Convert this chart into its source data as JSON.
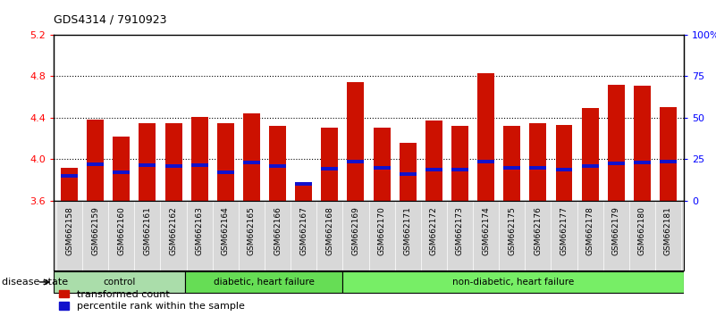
{
  "title": "GDS4314 / 7910923",
  "samples": [
    "GSM662158",
    "GSM662159",
    "GSM662160",
    "GSM662161",
    "GSM662162",
    "GSM662163",
    "GSM662164",
    "GSM662165",
    "GSM662166",
    "GSM662167",
    "GSM662168",
    "GSM662169",
    "GSM662170",
    "GSM662171",
    "GSM662172",
    "GSM662173",
    "GSM662174",
    "GSM662175",
    "GSM662176",
    "GSM662177",
    "GSM662178",
    "GSM662179",
    "GSM662180",
    "GSM662181"
  ],
  "red_values": [
    3.92,
    4.38,
    4.22,
    4.35,
    4.35,
    4.41,
    4.35,
    4.44,
    4.32,
    3.76,
    4.3,
    4.74,
    4.3,
    4.16,
    4.37,
    4.32,
    4.83,
    4.32,
    4.35,
    4.33,
    4.49,
    4.72,
    4.71,
    4.5
  ],
  "blue_values": [
    3.84,
    3.95,
    3.87,
    3.94,
    3.93,
    3.94,
    3.87,
    3.97,
    3.93,
    3.76,
    3.91,
    3.98,
    3.92,
    3.86,
    3.9,
    3.9,
    3.98,
    3.92,
    3.92,
    3.9,
    3.93,
    3.96,
    3.97,
    3.98
  ],
  "ylim_left": [
    3.6,
    5.2
  ],
  "ylim_right": [
    0,
    100
  ],
  "yticks_left": [
    3.6,
    4.0,
    4.4,
    4.8,
    5.2
  ],
  "yticks_right": [
    0,
    25,
    50,
    75,
    100
  ],
  "ytick_right_labels": [
    "0",
    "25",
    "50",
    "75",
    "100%"
  ],
  "grid_values": [
    4.0,
    4.4,
    4.8
  ],
  "bar_color": "#cc1100",
  "blue_color": "#1111cc",
  "plot_bg": "#ffffff",
  "tick_bg": "#d8d8d8",
  "group_labels": [
    "control",
    "diabetic, heart failure",
    "non-diabetic, heart failure"
  ],
  "group_colors": [
    "#aaddaa",
    "#66dd55",
    "#77ee66"
  ],
  "group_ranges": [
    [
      0,
      5
    ],
    [
      5,
      11
    ],
    [
      11,
      24
    ]
  ],
  "disease_state_label": "disease state",
  "legend_red": "transformed count",
  "legend_blue": "percentile rank within the sample",
  "n_control": 5,
  "n_diabetic": 6,
  "n_nondiabetic": 13
}
